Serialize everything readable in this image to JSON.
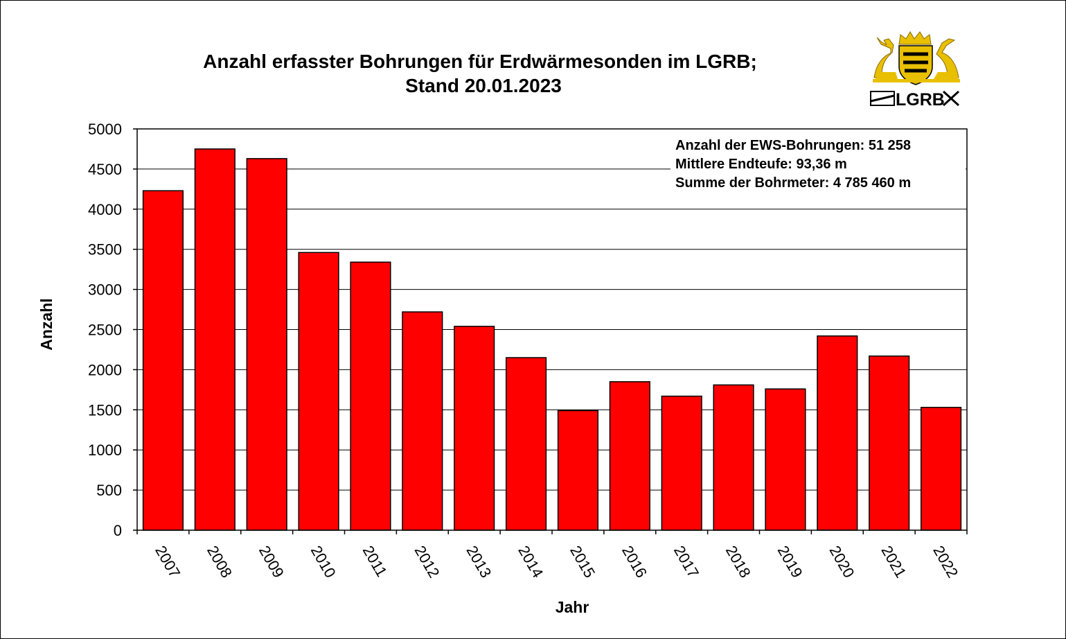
{
  "chart_data": {
    "type": "bar",
    "title": [
      "Anzahl erfasster Bohrungen für Erdwärmesonden im LGRB;",
      "Stand 20.01.2023"
    ],
    "xlabel": "Jahr",
    "ylabel": "Anzahl",
    "categories": [
      "2007",
      "2008",
      "2009",
      "2010",
      "2011",
      "2012",
      "2013",
      "2014",
      "2015",
      "2016",
      "2017",
      "2018",
      "2019",
      "2020",
      "2021",
      "2022"
    ],
    "values": [
      4230,
      4750,
      4630,
      3460,
      3340,
      2720,
      2540,
      2150,
      1490,
      1850,
      1670,
      1810,
      1760,
      2420,
      2170,
      1530
    ],
    "ylim": [
      0,
      5000
    ],
    "yticks": [
      "0",
      "500",
      "1000",
      "1500",
      "2000",
      "2500",
      "3000",
      "3500",
      "4000",
      "4500",
      "5000"
    ],
    "grid": true,
    "bar_color": "#ff0000",
    "info_lines": [
      "Anzahl der  EWS-Bohrungen:  51 258",
      "Mittlere Endteufe:  93,36 m",
      "Summe der Bohrmeter:  4 785 460 m"
    ]
  },
  "logo": {
    "text": "LGRB",
    "icon": "baden-wuerttemberg-coat-of-arms-icon",
    "gold": "#e8c000"
  }
}
